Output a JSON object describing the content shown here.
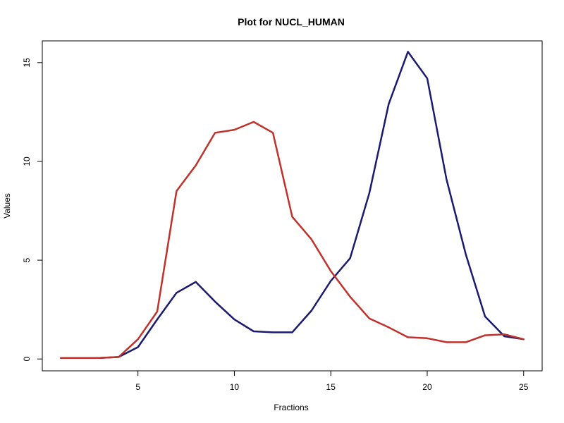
{
  "chart_data": {
    "type": "line",
    "title": "Plot for NUCL_HUMAN",
    "xlabel": "Fractions",
    "ylabel": "Values",
    "xlim": [
      0.04,
      25.96
    ],
    "ylim": [
      -0.6,
      16.1
    ],
    "x_ticks": [
      5,
      10,
      15,
      20,
      25
    ],
    "y_ticks": [
      0,
      5,
      10,
      15
    ],
    "grid": false,
    "series": [
      {
        "color": "#1a1a6e",
        "x": [
          1,
          2,
          3,
          4,
          5,
          6,
          7,
          8,
          9,
          10,
          11,
          12,
          13,
          14,
          15,
          16,
          17,
          18,
          19,
          20,
          21,
          22,
          23,
          24,
          25
        ],
        "values": [
          0.05,
          0.05,
          0.05,
          0.1,
          0.6,
          2.0,
          3.35,
          3.9,
          2.9,
          2.0,
          1.4,
          1.35,
          1.35,
          2.45,
          3.95,
          5.1,
          8.4,
          12.9,
          15.55,
          14.2,
          9.1,
          5.3,
          2.15,
          1.15,
          1.0
        ]
      },
      {
        "color": "#c0312b",
        "x": [
          1,
          2,
          3,
          4,
          5,
          6,
          7,
          8,
          9,
          10,
          11,
          12,
          13,
          14,
          15,
          16,
          17,
          18,
          19,
          20,
          21,
          22,
          23,
          24,
          25
        ],
        "values": [
          0.05,
          0.05,
          0.05,
          0.1,
          1.0,
          2.4,
          8.5,
          9.8,
          11.45,
          11.6,
          12.0,
          11.45,
          7.2,
          6.05,
          4.45,
          3.15,
          2.05,
          1.6,
          1.1,
          1.05,
          0.85,
          0.85,
          1.2,
          1.25,
          1.0
        ]
      }
    ]
  }
}
